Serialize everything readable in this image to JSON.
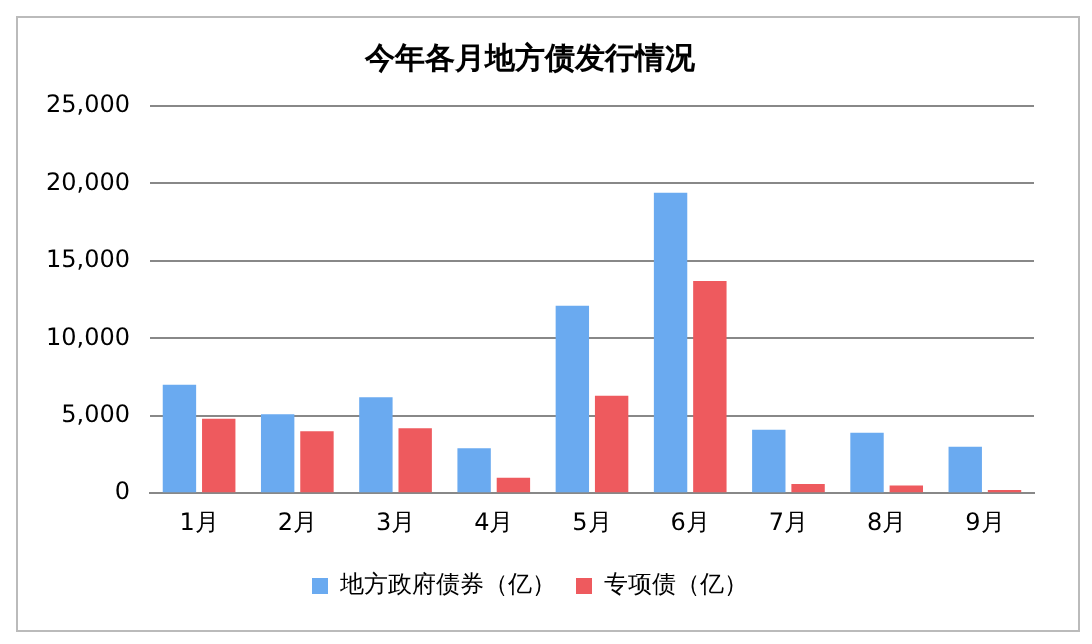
{
  "chart_data": {
    "type": "bar",
    "title": "今年各月地方债发行情况",
    "categories": [
      "1月",
      "2月",
      "3月",
      "4月",
      "5月",
      "6月",
      "7月",
      "8月",
      "9月"
    ],
    "series": [
      {
        "name": "地方政府债券（亿）",
        "color": "#6aaaf0",
        "values": [
          7000,
          5100,
          6200,
          2900,
          12100,
          19400,
          4100,
          3900,
          3000
        ]
      },
      {
        "name": "专项债（亿）",
        "color": "#ee5a5e",
        "values": [
          4800,
          4000,
          4200,
          1000,
          6300,
          13700,
          600,
          500,
          200
        ]
      }
    ],
    "ylim": [
      0,
      25000
    ],
    "yticks": [
      0,
      {
        "value": 5000,
        "label": "5,000"
      },
      {
        "value": 10000,
        "label": "10,000"
      },
      {
        "value": 15000,
        "label": "15,000"
      },
      {
        "value": 20000,
        "label": "20,000"
      },
      {
        "value": 25000,
        "label": "25,000"
      }
    ],
    "grid": "y",
    "legend": "bottom"
  }
}
